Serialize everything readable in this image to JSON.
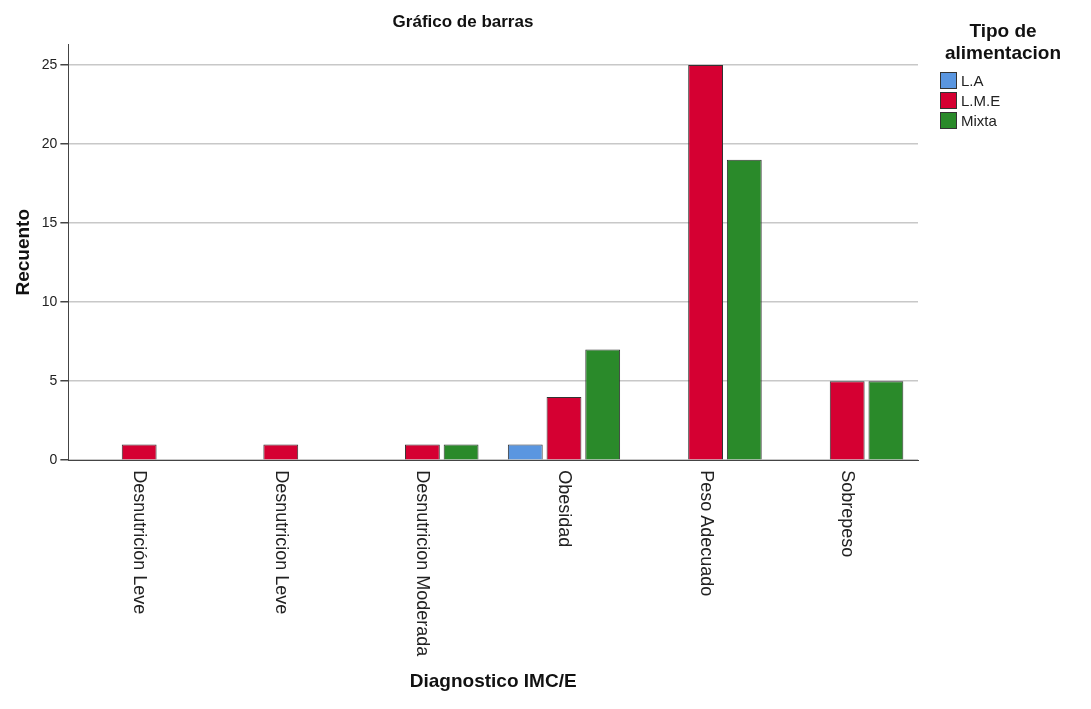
{
  "chart_data": {
    "type": "bar",
    "title": "Gráfico de barras",
    "xlabel": "Diagnostico IMC/E",
    "ylabel": "Recuento",
    "legend_title": "Tipo de alimentacion",
    "categories": [
      "Desnutrición Leve",
      "Desnutricion Leve",
      "Desnutricion Moderada",
      "Obesidad",
      "Peso Adecuado",
      "Sobrepeso"
    ],
    "series": [
      {
        "name": "L.A",
        "color": "#5a96e0",
        "values": [
          null,
          null,
          null,
          1,
          null,
          null
        ]
      },
      {
        "name": "L.M.E",
        "color": "#d50032",
        "values": [
          1,
          1,
          1,
          4,
          25,
          5
        ]
      },
      {
        "name": "Mixta",
        "color": "#2a8a2a",
        "values": [
          null,
          null,
          1,
          7,
          19,
          5
        ]
      }
    ],
    "ylim": [
      0,
      26.3
    ],
    "yticks": [
      0,
      5,
      10,
      15,
      20,
      25
    ],
    "grid": "y",
    "legend": "top right"
  }
}
